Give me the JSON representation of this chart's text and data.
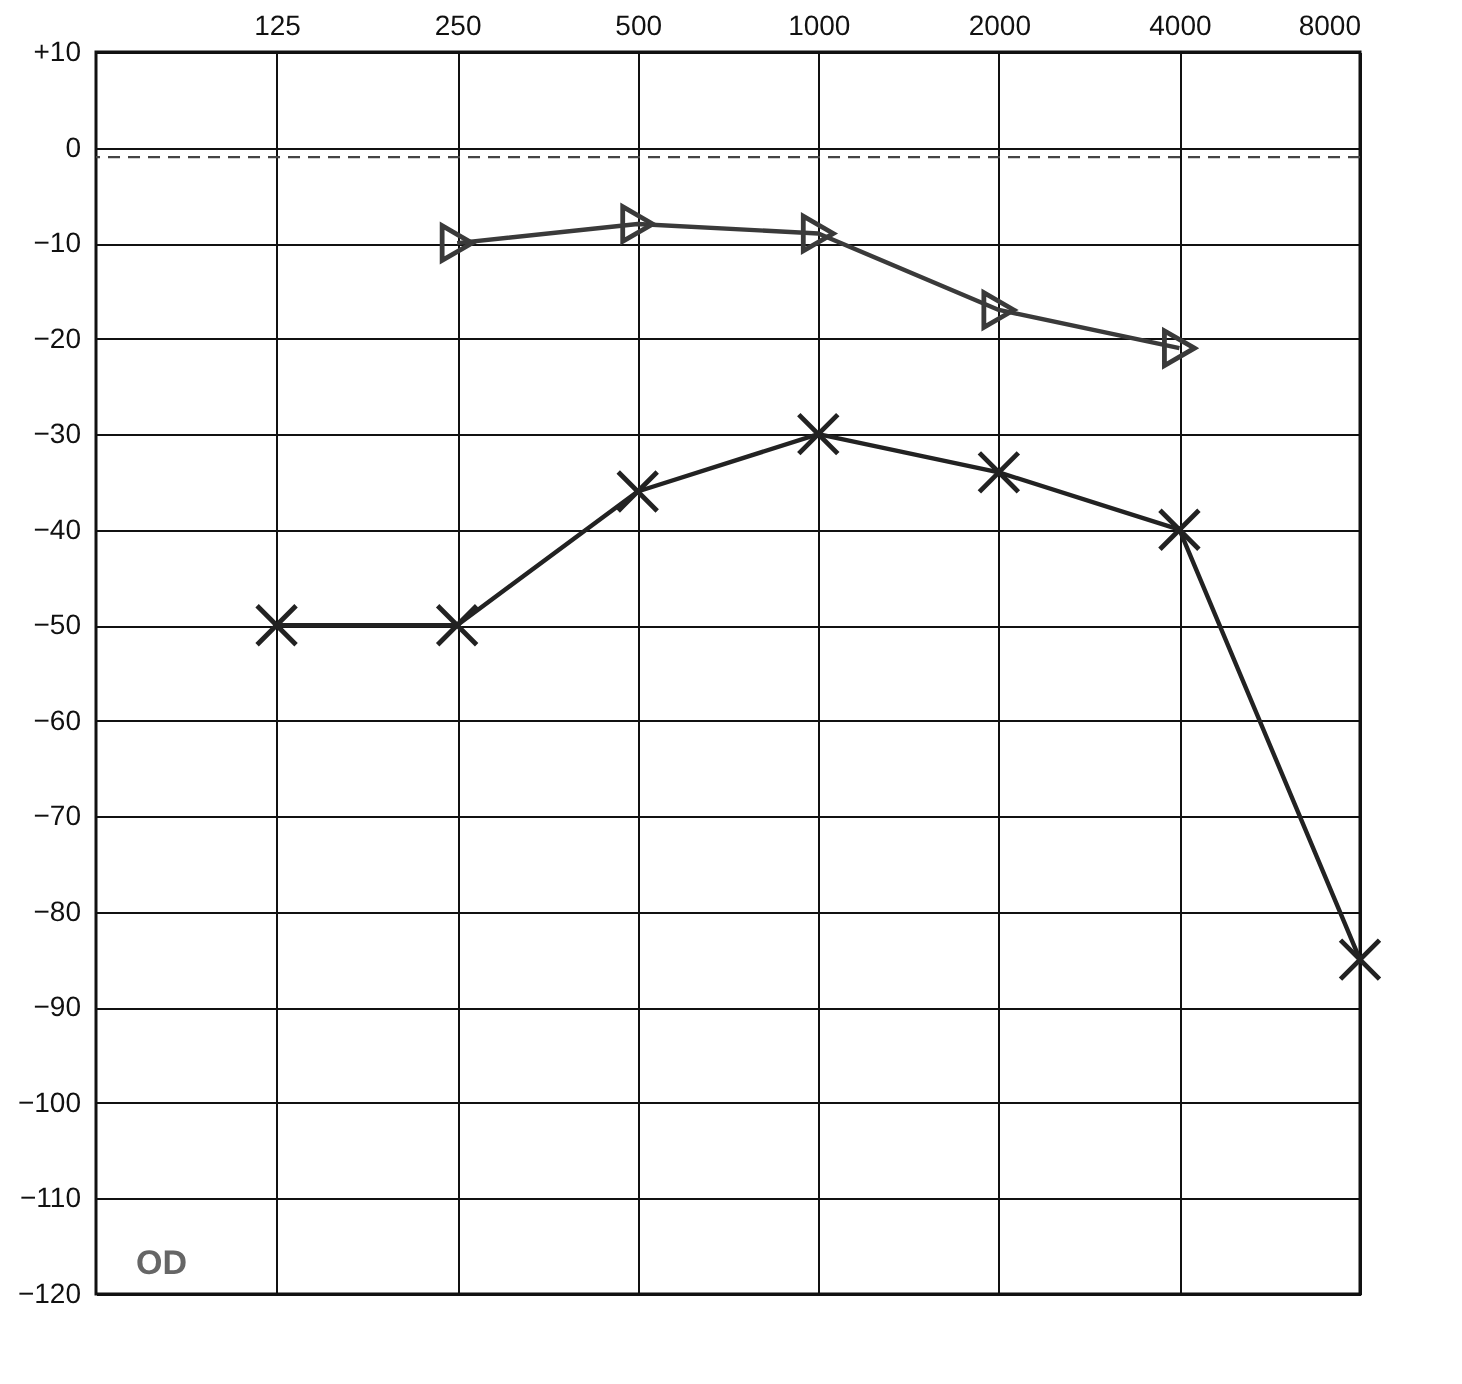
{
  "chart_data": {
    "type": "line",
    "categories": [
      "125",
      "250",
      "500",
      "1000",
      "2000",
      "4000",
      "8000"
    ],
    "series": [
      {
        "color": "#3a3a3a",
        "marker": "triangle",
        "values": [
          null,
          -10,
          -8,
          -9,
          -17,
          -21,
          null
        ]
      },
      {
        "color": "#222222",
        "marker": "cross",
        "values": [
          -50,
          -50,
          -36,
          -30,
          -34,
          -40,
          -85
        ]
      }
    ],
    "ylim": [
      -120,
      10
    ],
    "yticks": [
      {
        "value": 10,
        "label": "+10"
      },
      0,
      -10,
      -20,
      -30,
      -40,
      -50,
      -60,
      -70,
      -80,
      -90,
      -100,
      -110,
      -120
    ],
    "grid": true,
    "ref_lines": [
      {
        "axis": "y",
        "value": -1,
        "line_style": "dashed",
        "color": "#444444"
      }
    ],
    "annotations": [
      "OD"
    ]
  }
}
